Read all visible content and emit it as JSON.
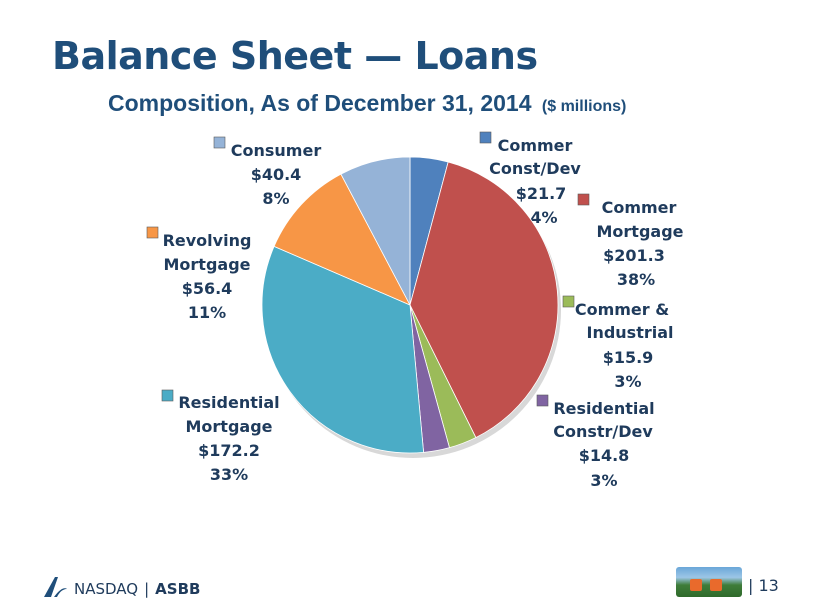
{
  "header": {
    "title": "Balance Sheet — Loans",
    "subtitle": "Composition, As of December 31, 2014",
    "subtitle_unit": "($ millions)"
  },
  "chart_data": {
    "type": "pie",
    "title": "Composition, As of December 31, 2014",
    "unit": "($ millions)",
    "slices": [
      {
        "name": "Commer Const/Dev",
        "value": 21.7,
        "value_label": "$21.7",
        "percent_label": "4%",
        "color": "#4f81bd"
      },
      {
        "name": "Commer Mortgage",
        "value": 201.3,
        "value_label": "$201.3",
        "percent_label": "38%",
        "color": "#c0504d"
      },
      {
        "name": "Commer & Industrial",
        "value": 15.9,
        "value_label": "$15.9",
        "percent_label": "3%",
        "color": "#9bbb59"
      },
      {
        "name": "Residential Constr/Dev",
        "value": 14.8,
        "value_label": "$14.8",
        "percent_label": "3%",
        "color": "#8064a2"
      },
      {
        "name": "Residential Mortgage",
        "value": 172.2,
        "value_label": "$172.2",
        "percent_label": "33%",
        "color": "#4bacc6"
      },
      {
        "name": "Revolving Mortgage",
        "value": 56.4,
        "value_label": "$56.4",
        "percent_label": "11%",
        "color": "#f79646"
      },
      {
        "name": "Consumer",
        "value": 40.4,
        "value_label": "$40.4",
        "percent_label": "8%",
        "color": "#95b3d7"
      }
    ]
  },
  "footer": {
    "exchange": "NASDAQ",
    "separator": "|",
    "ticker": "ASBB",
    "page_separator": "|",
    "page_number": "13"
  }
}
